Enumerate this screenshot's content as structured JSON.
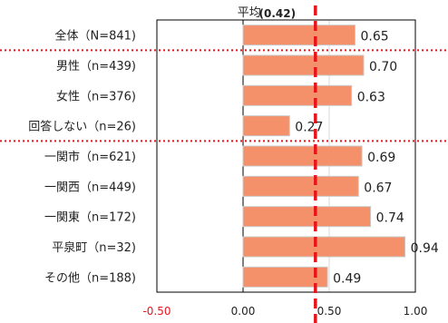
{
  "chart_data": {
    "type": "bar",
    "orientation": "horizontal",
    "title": "平均",
    "average_value": 0.42,
    "average_label": "(0.42)",
    "categories": [
      "全体（N=841)",
      "男性（n=439)",
      "女性（n=376)",
      "回答しない（n=26)",
      "一関市（n=621)",
      "一関西（n=449)",
      "一関東（n=172)",
      "平泉町（n=32)",
      "その他（n=188)"
    ],
    "values": [
      0.65,
      0.7,
      0.63,
      0.27,
      0.69,
      0.67,
      0.74,
      0.94,
      0.49
    ],
    "value_labels": [
      "0.65",
      "0.70",
      "0.63",
      "0.27",
      "0.69",
      "0.67",
      "0.74",
      "0.94",
      "0.49"
    ],
    "xlim": [
      -0.5,
      1.0
    ],
    "xticks": [
      -0.5,
      0.0,
      0.5,
      1.0
    ],
    "xtick_labels": [
      "-0.50",
      "0.00",
      "0.50",
      "1.00"
    ],
    "group_separators_after": [
      0,
      3
    ],
    "grid": "vertical-minor",
    "colors": {
      "bar": "#f4916a",
      "bar_border": "#c9c9c9",
      "average_line": "#e8141b",
      "separator": "#e8141b",
      "negative_tick": "#e8141b",
      "text": "#222222",
      "axis": "#000000",
      "grid": "#d9d9d9"
    }
  }
}
